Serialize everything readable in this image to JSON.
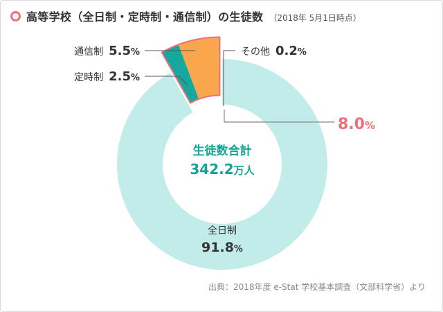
{
  "title": "高等学校（全日制・定時制・通信制）の生徒数",
  "title_note": "（2018年 5月1日時点）",
  "source": "出典：2018年度 e-Stat 学校基本調査（文部科学省）より",
  "colors": {
    "fulltime": "#c2ece9",
    "parttime": "#16a89e",
    "correspondence": "#f9a64d",
    "other": "#f2a14f",
    "callout": "#ee6f77",
    "center_text": "#17a297"
  },
  "chart_data": {
    "type": "pie",
    "subtype": "donut",
    "categories": [
      "全日制",
      "定時制",
      "通信制",
      "その他"
    ],
    "values": [
      91.8,
      2.5,
      5.5,
      0.2
    ],
    "unit": "%",
    "center_label": "生徒数合計",
    "center_value": "342.2",
    "center_unit": "万人",
    "callout_total": "8.0",
    "callout_unit": "%"
  }
}
